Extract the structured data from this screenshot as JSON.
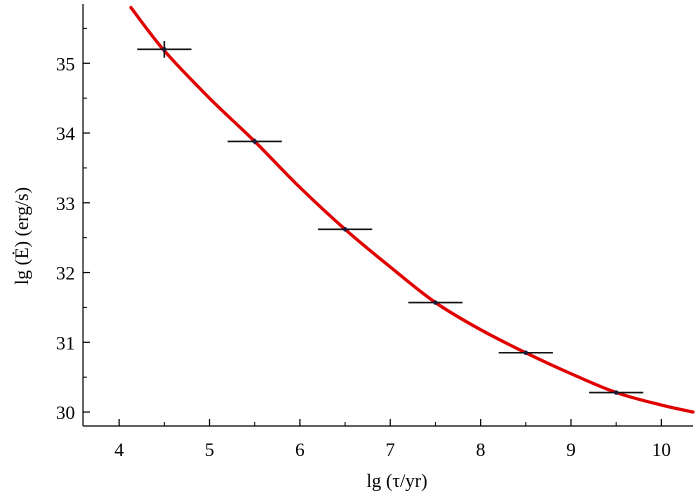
{
  "chart_data": {
    "type": "scatter",
    "title": "",
    "xlabel": "lg (τ/yr)",
    "ylabel": "lg (Ė) (erg/s)",
    "xlim": [
      3.6,
      10.35
    ],
    "ylim": [
      29.8,
      35.85
    ],
    "xticks": [
      4,
      5,
      6,
      7,
      8,
      9,
      10
    ],
    "yticks": [
      30,
      31,
      32,
      33,
      34,
      35
    ],
    "grid": false,
    "legend": "none",
    "series": [
      {
        "kind": "points_with_xerr",
        "color": "#1a1a3a",
        "points": [
          {
            "x": 4.5,
            "y": 35.2,
            "xerr": 0.3,
            "yerr": 0.12
          },
          {
            "x": 5.5,
            "y": 33.88,
            "xerr": 0.3,
            "yerr": 0.04
          },
          {
            "x": 6.5,
            "y": 32.62,
            "xerr": 0.3,
            "yerr": 0.03
          },
          {
            "x": 7.5,
            "y": 31.57,
            "xerr": 0.3,
            "yerr": 0.03
          },
          {
            "x": 8.5,
            "y": 30.85,
            "xerr": 0.3,
            "yerr": 0.03
          },
          {
            "x": 9.5,
            "y": 30.28,
            "xerr": 0.3,
            "yerr": 0.03
          }
        ]
      },
      {
        "kind": "curve",
        "color": "#e00000",
        "x": [
          4.13,
          4.5,
          5.0,
          5.5,
          6.0,
          6.5,
          7.0,
          7.5,
          8.0,
          8.5,
          9.0,
          9.5,
          10.0,
          10.35
        ],
        "y": [
          35.8,
          35.18,
          34.5,
          33.88,
          33.22,
          32.62,
          32.08,
          31.57,
          31.18,
          30.85,
          30.55,
          30.28,
          30.1,
          30.0
        ]
      }
    ]
  }
}
